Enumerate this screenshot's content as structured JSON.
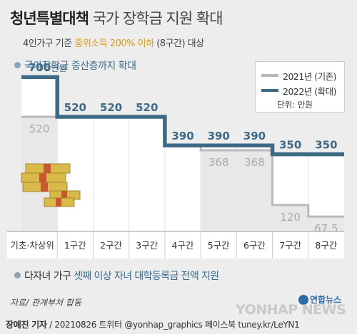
{
  "header": {
    "title_bold": "청년특별대책",
    "title_rest": "국가 장학금 지원 확대",
    "subtitle_pre": "4인가구 기준",
    "subtitle_highlight": "중위소득 200% 이하",
    "subtitle_post": "(8구간) 대상"
  },
  "section1": {
    "label": "국가장학금 중산층까지 확대"
  },
  "legend": {
    "items": [
      {
        "label": "2021년 (기존)",
        "color": "#b9b9b9"
      },
      {
        "label": "2022년 (확대)",
        "color": "#3f6a86"
      }
    ],
    "unit": "단위: 만원"
  },
  "chart_data": {
    "type": "step-bar",
    "categories": [
      "기초·차상위",
      "1구간",
      "2구간",
      "3구간",
      "4구간",
      "5구간",
      "6구간",
      "7구간",
      "8구간"
    ],
    "series": [
      {
        "name": "2021년 (기존)",
        "values": [
          520,
          520,
          520,
          520,
          390,
          368,
          368,
          120,
          67.5
        ],
        "labels": [
          "520",
          "",
          "",
          "",
          "",
          "368",
          "368",
          "120",
          "67.5"
        ]
      },
      {
        "name": "2022년 (확대)",
        "values": [
          700,
          520,
          520,
          520,
          390,
          390,
          390,
          350,
          350
        ],
        "labels": [
          "700",
          "520",
          "520",
          "520",
          "390",
          "390",
          "390",
          "350",
          "350"
        ]
      }
    ],
    "first_label_suffix": "만원",
    "ylim": [
      0,
      720
    ]
  },
  "section2": {
    "pre": "다자녀 가구",
    "highlight": "셋째 이상 자녀 대학등록금 전액 지원"
  },
  "footer": {
    "source": "자료/ 관계부처 합동",
    "logo": "연합뉴스",
    "watermark": "YONHAP NEWS",
    "reporter": "장예진 기자",
    "credit_rest": "/ 20210826 트위터 @yonhap_graphics  페이스북 tuney.kr/LeYN1"
  }
}
